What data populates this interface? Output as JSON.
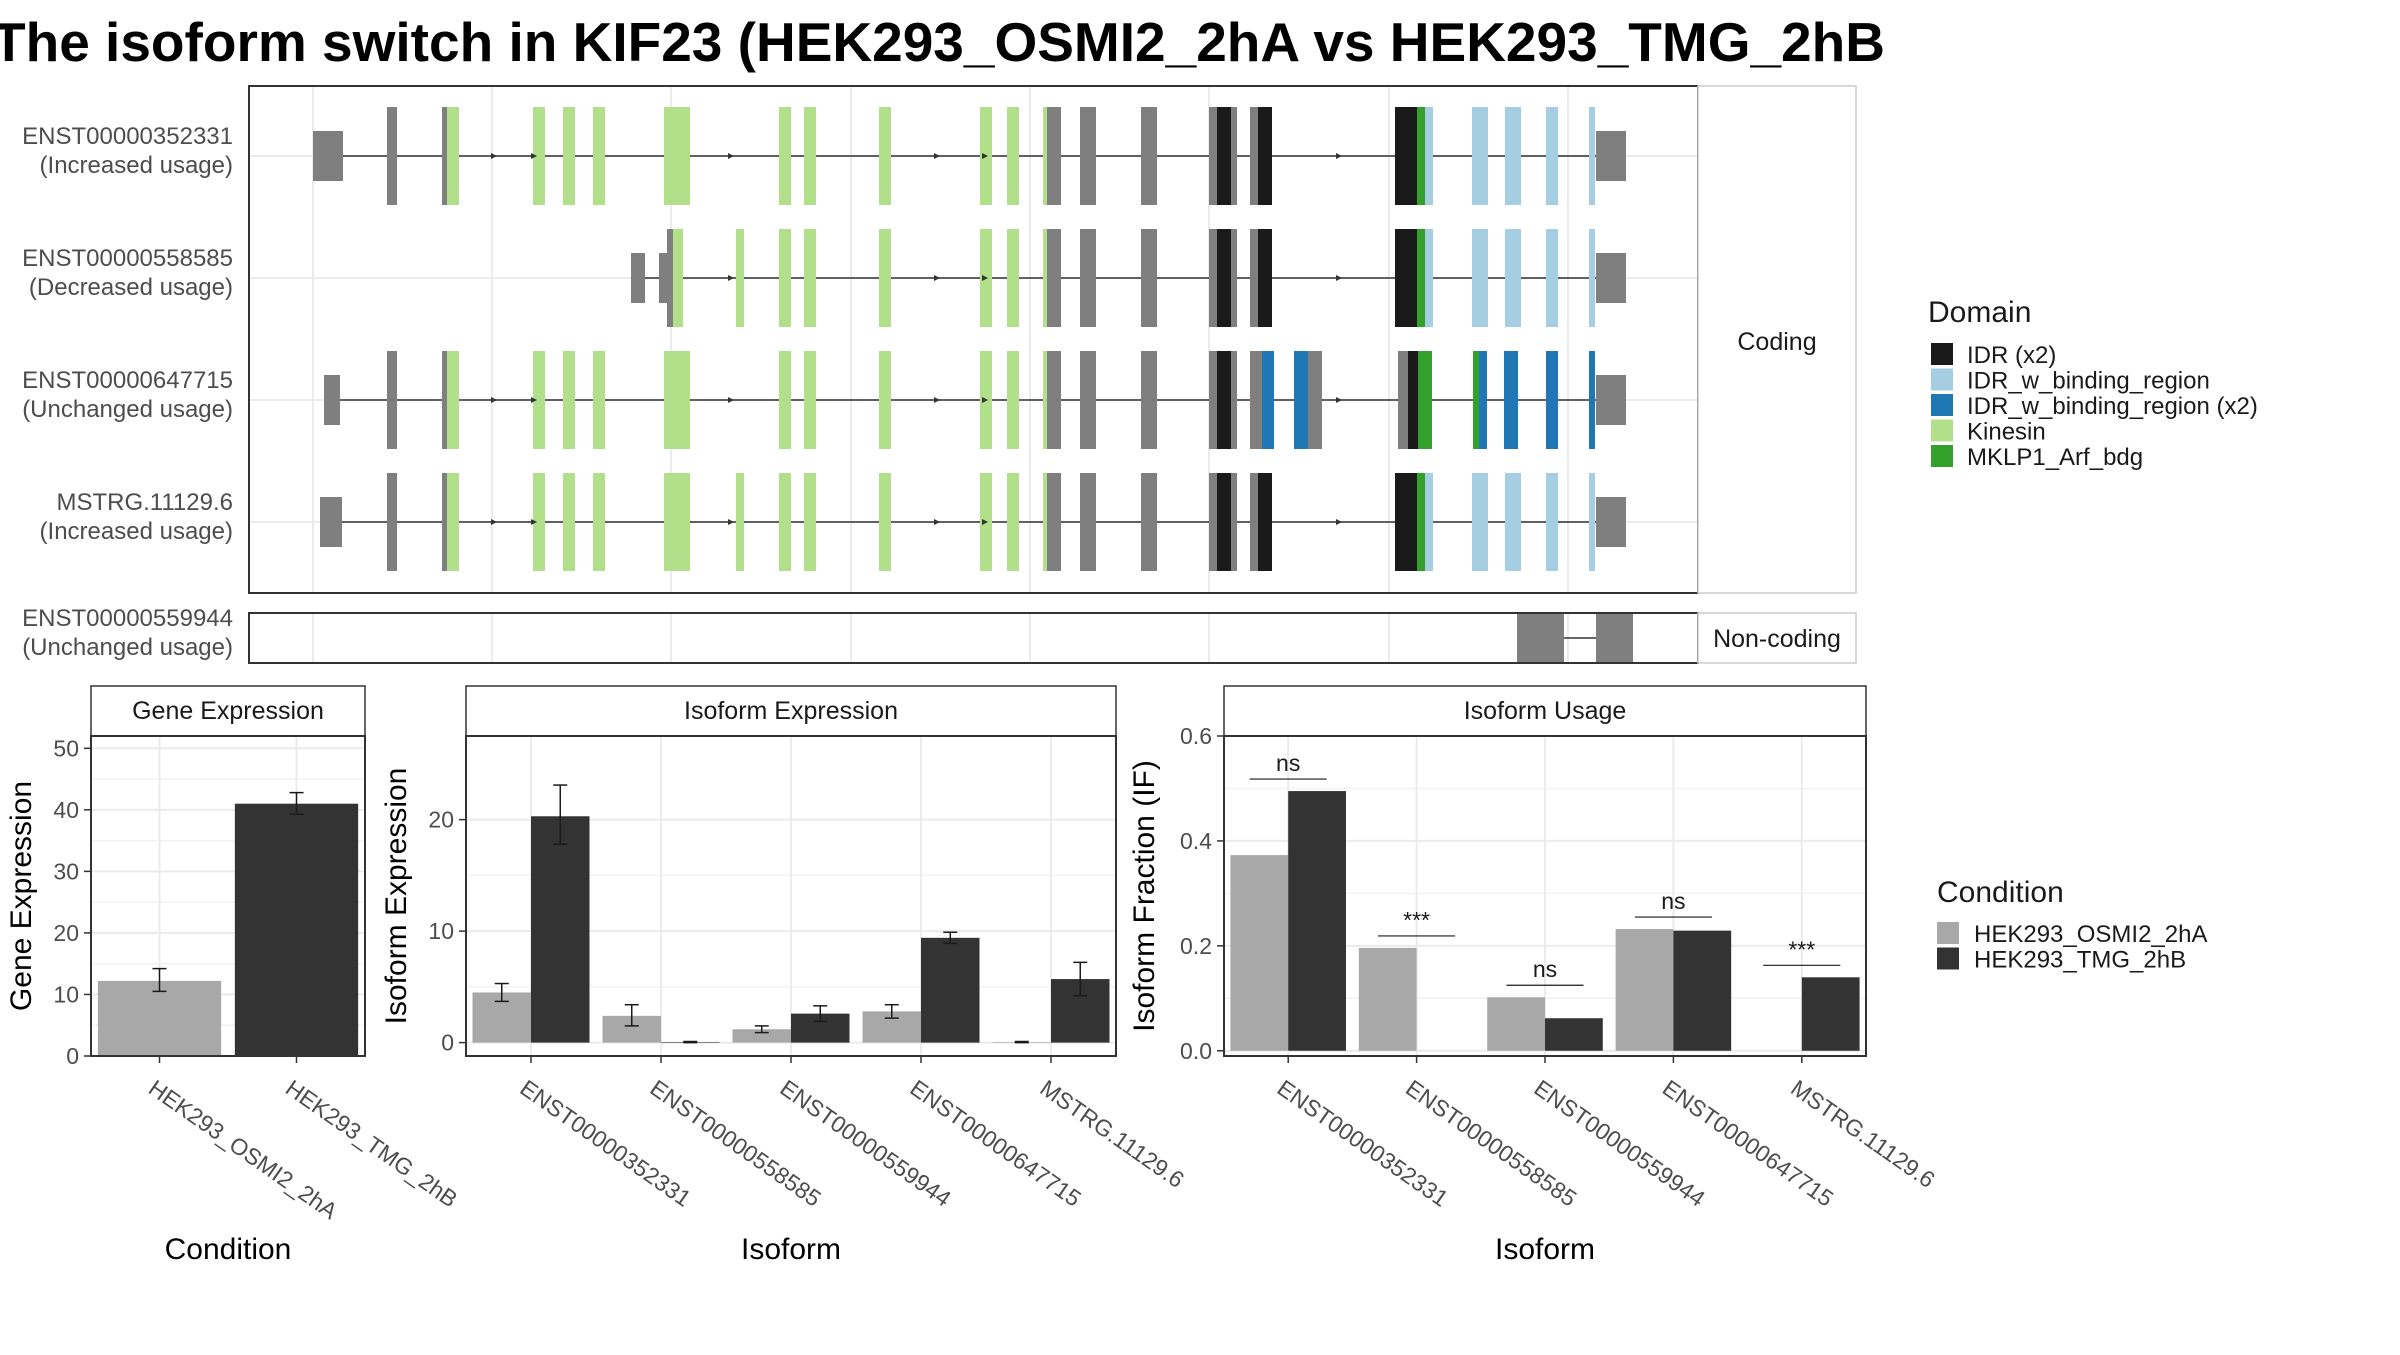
{
  "title": "The isoform switch in KIF23 (HEK293_OSMI2_2hA vs HEK293_TMG_2hB",
  "colors": {
    "exon_default": "#7f7f7f",
    "grid": "#ebebeb",
    "panel_border": "#333333",
    "strip_bg": "#ffffff",
    "cond_a": "#a8a8a8",
    "cond_b": "#333333"
  },
  "structure": {
    "facets": {
      "coding": "Coding",
      "noncoding": "Non-coding"
    },
    "domain_legend": {
      "title": "Domain",
      "entries": [
        {
          "key": "idr",
          "label": "IDR (x2)",
          "color": "#1a1a1a"
        },
        {
          "key": "idrb",
          "label": "IDR_w_binding_region",
          "color": "#a6cee3"
        },
        {
          "key": "idrb2",
          "label": "IDR_w_binding_region (x2)",
          "color": "#1f78b4"
        },
        {
          "key": "kin",
          "label": "Kinesin",
          "color": "#b2df8a"
        },
        {
          "key": "arf",
          "label": "MKLP1_Arf_bdg",
          "color": "#33a02c"
        }
      ]
    },
    "transcripts": [
      {
        "id": "ENST00000352331",
        "status": "(Increased usage)",
        "coding": true
      },
      {
        "id": "ENST00000558585",
        "status": "(Decreased usage)",
        "coding": true
      },
      {
        "id": "ENST00000647715",
        "status": "(Unchanged usage)",
        "coding": true
      },
      {
        "id": "MSTRG.11129.6",
        "status": "(Increased usage)",
        "coding": true
      },
      {
        "id": "ENST00000559944",
        "status": "(Unchanged usage)",
        "coding": false
      }
    ]
  },
  "condition_legend": {
    "title": "Condition",
    "entries": [
      {
        "label": "HEK293_OSMI2_2hA",
        "color": "#a8a8a8"
      },
      {
        "label": "HEK293_TMG_2hB",
        "color": "#333333"
      }
    ]
  },
  "chart_data": [
    {
      "type": "bar",
      "title": "Gene Expression",
      "xlabel": "Condition",
      "ylabel": "Gene Expression",
      "categories": [
        "HEK293_OSMI2_2hA",
        "HEK293_TMG_2hB"
      ],
      "values": [
        12.2,
        41.0
      ],
      "errors": [
        [
          10.5,
          14.2
        ],
        [
          39.3,
          42.8
        ]
      ],
      "colors": [
        "#a8a8a8",
        "#333333"
      ],
      "ylim": [
        0,
        52
      ],
      "yticks": [
        0,
        10,
        20,
        30,
        40,
        50
      ],
      "grid": true
    },
    {
      "type": "bar",
      "title": "Isoform Expression",
      "xlabel": "Isoform",
      "ylabel": "Isoform Expression",
      "categories": [
        "ENST00000352331",
        "ENST00000558585",
        "ENST00000559944",
        "ENST00000647715",
        "MSTRG.11129.6"
      ],
      "series": [
        {
          "name": "HEK293_OSMI2_2hA",
          "values": [
            4.5,
            2.4,
            1.2,
            2.8,
            0.05
          ],
          "errors": [
            [
              3.7,
              5.3
            ],
            [
              1.5,
              3.4
            ],
            [
              0.9,
              1.5
            ],
            [
              2.2,
              3.4
            ],
            [
              0.0,
              0.1
            ]
          ]
        },
        {
          "name": "HEK293_TMG_2hB",
          "values": [
            20.3,
            0.05,
            2.6,
            9.4,
            5.7
          ],
          "errors": [
            [
              17.8,
              23.1
            ],
            [
              0.0,
              0.1
            ],
            [
              1.9,
              3.3
            ],
            [
              8.9,
              9.9
            ],
            [
              4.2,
              7.2
            ]
          ]
        }
      ],
      "ylim": [
        -1.2,
        27.5
      ],
      "yticks": [
        0,
        10,
        20
      ],
      "grid": true
    },
    {
      "type": "bar",
      "title": "Isoform Usage",
      "xlabel": "Isoform",
      "ylabel": "Isoform Fraction (IF)",
      "categories": [
        "ENST00000352331",
        "ENST00000558585",
        "ENST00000559944",
        "ENST00000647715",
        "MSTRG.11129.6"
      ],
      "series": [
        {
          "name": "HEK293_OSMI2_2hA",
          "values": [
            0.373,
            0.196,
            0.102,
            0.232,
            0.0
          ]
        },
        {
          "name": "HEK293_TMG_2hB",
          "values": [
            0.495,
            0.0,
            0.062,
            0.229,
            0.14
          ]
        }
      ],
      "significance": [
        "ns",
        "***",
        "ns",
        "ns",
        "***"
      ],
      "ylim": [
        -0.01,
        0.6
      ],
      "yticks": [
        0.0,
        0.2,
        0.4,
        0.6
      ],
      "grid": true
    }
  ]
}
